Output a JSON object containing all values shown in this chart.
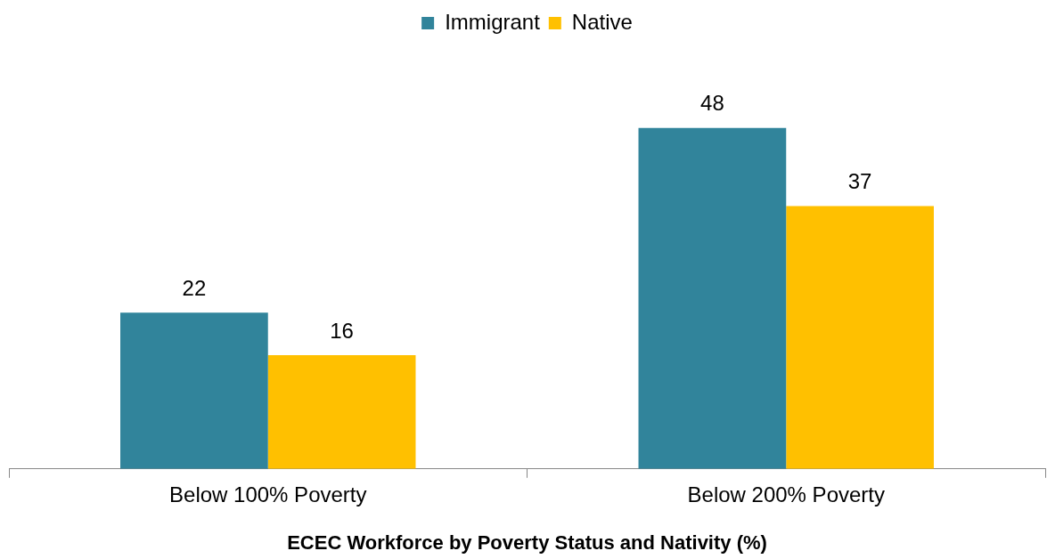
{
  "chart_data": {
    "type": "bar",
    "title": "ECEC Workforce by Poverty Status and Nativity (%)",
    "categories": [
      "Below 100% Poverty",
      "Below 200% Poverty"
    ],
    "series": [
      {
        "name": "Immigrant",
        "color": "#31849b",
        "values": [
          22,
          48
        ]
      },
      {
        "name": "Native",
        "color": "#ffc000",
        "values": [
          16,
          37
        ]
      }
    ],
    "data_labels": true,
    "legend": "top"
  }
}
